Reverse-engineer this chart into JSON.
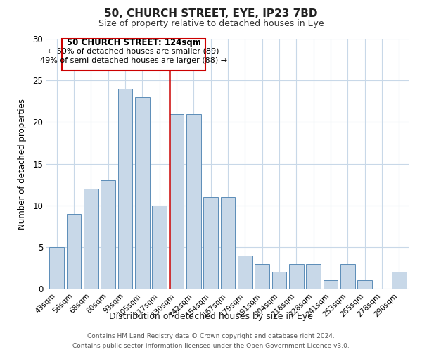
{
  "title": "50, CHURCH STREET, EYE, IP23 7BD",
  "subtitle": "Size of property relative to detached houses in Eye",
  "xlabel": "Distribution of detached houses by size in Eye",
  "ylabel": "Number of detached properties",
  "footer_line1": "Contains HM Land Registry data © Crown copyright and database right 2024.",
  "footer_line2": "Contains public sector information licensed under the Open Government Licence v3.0.",
  "bar_labels": [
    "43sqm",
    "56sqm",
    "68sqm",
    "80sqm",
    "93sqm",
    "105sqm",
    "117sqm",
    "130sqm",
    "142sqm",
    "154sqm",
    "167sqm",
    "179sqm",
    "191sqm",
    "204sqm",
    "216sqm",
    "228sqm",
    "241sqm",
    "253sqm",
    "265sqm",
    "278sqm",
    "290sqm"
  ],
  "bar_values": [
    5,
    9,
    12,
    13,
    24,
    23,
    10,
    21,
    21,
    11,
    11,
    4,
    3,
    2,
    3,
    3,
    1,
    3,
    1,
    0,
    2
  ],
  "bar_color": "#c8d8e8",
  "bar_edge_color": "#5b8db8",
  "marker_bar_index": 7,
  "marker_color": "#cc0000",
  "annotation_title": "50 CHURCH STREET: 124sqm",
  "annotation_line1": "← 50% of detached houses are smaller (89)",
  "annotation_line2": "49% of semi-detached houses are larger (88) →",
  "annotation_box_edge": "#cc0000",
  "ylim": [
    0,
    30
  ],
  "yticks": [
    0,
    5,
    10,
    15,
    20,
    25,
    30
  ],
  "background_color": "#ffffff",
  "grid_color": "#c8d8e8"
}
